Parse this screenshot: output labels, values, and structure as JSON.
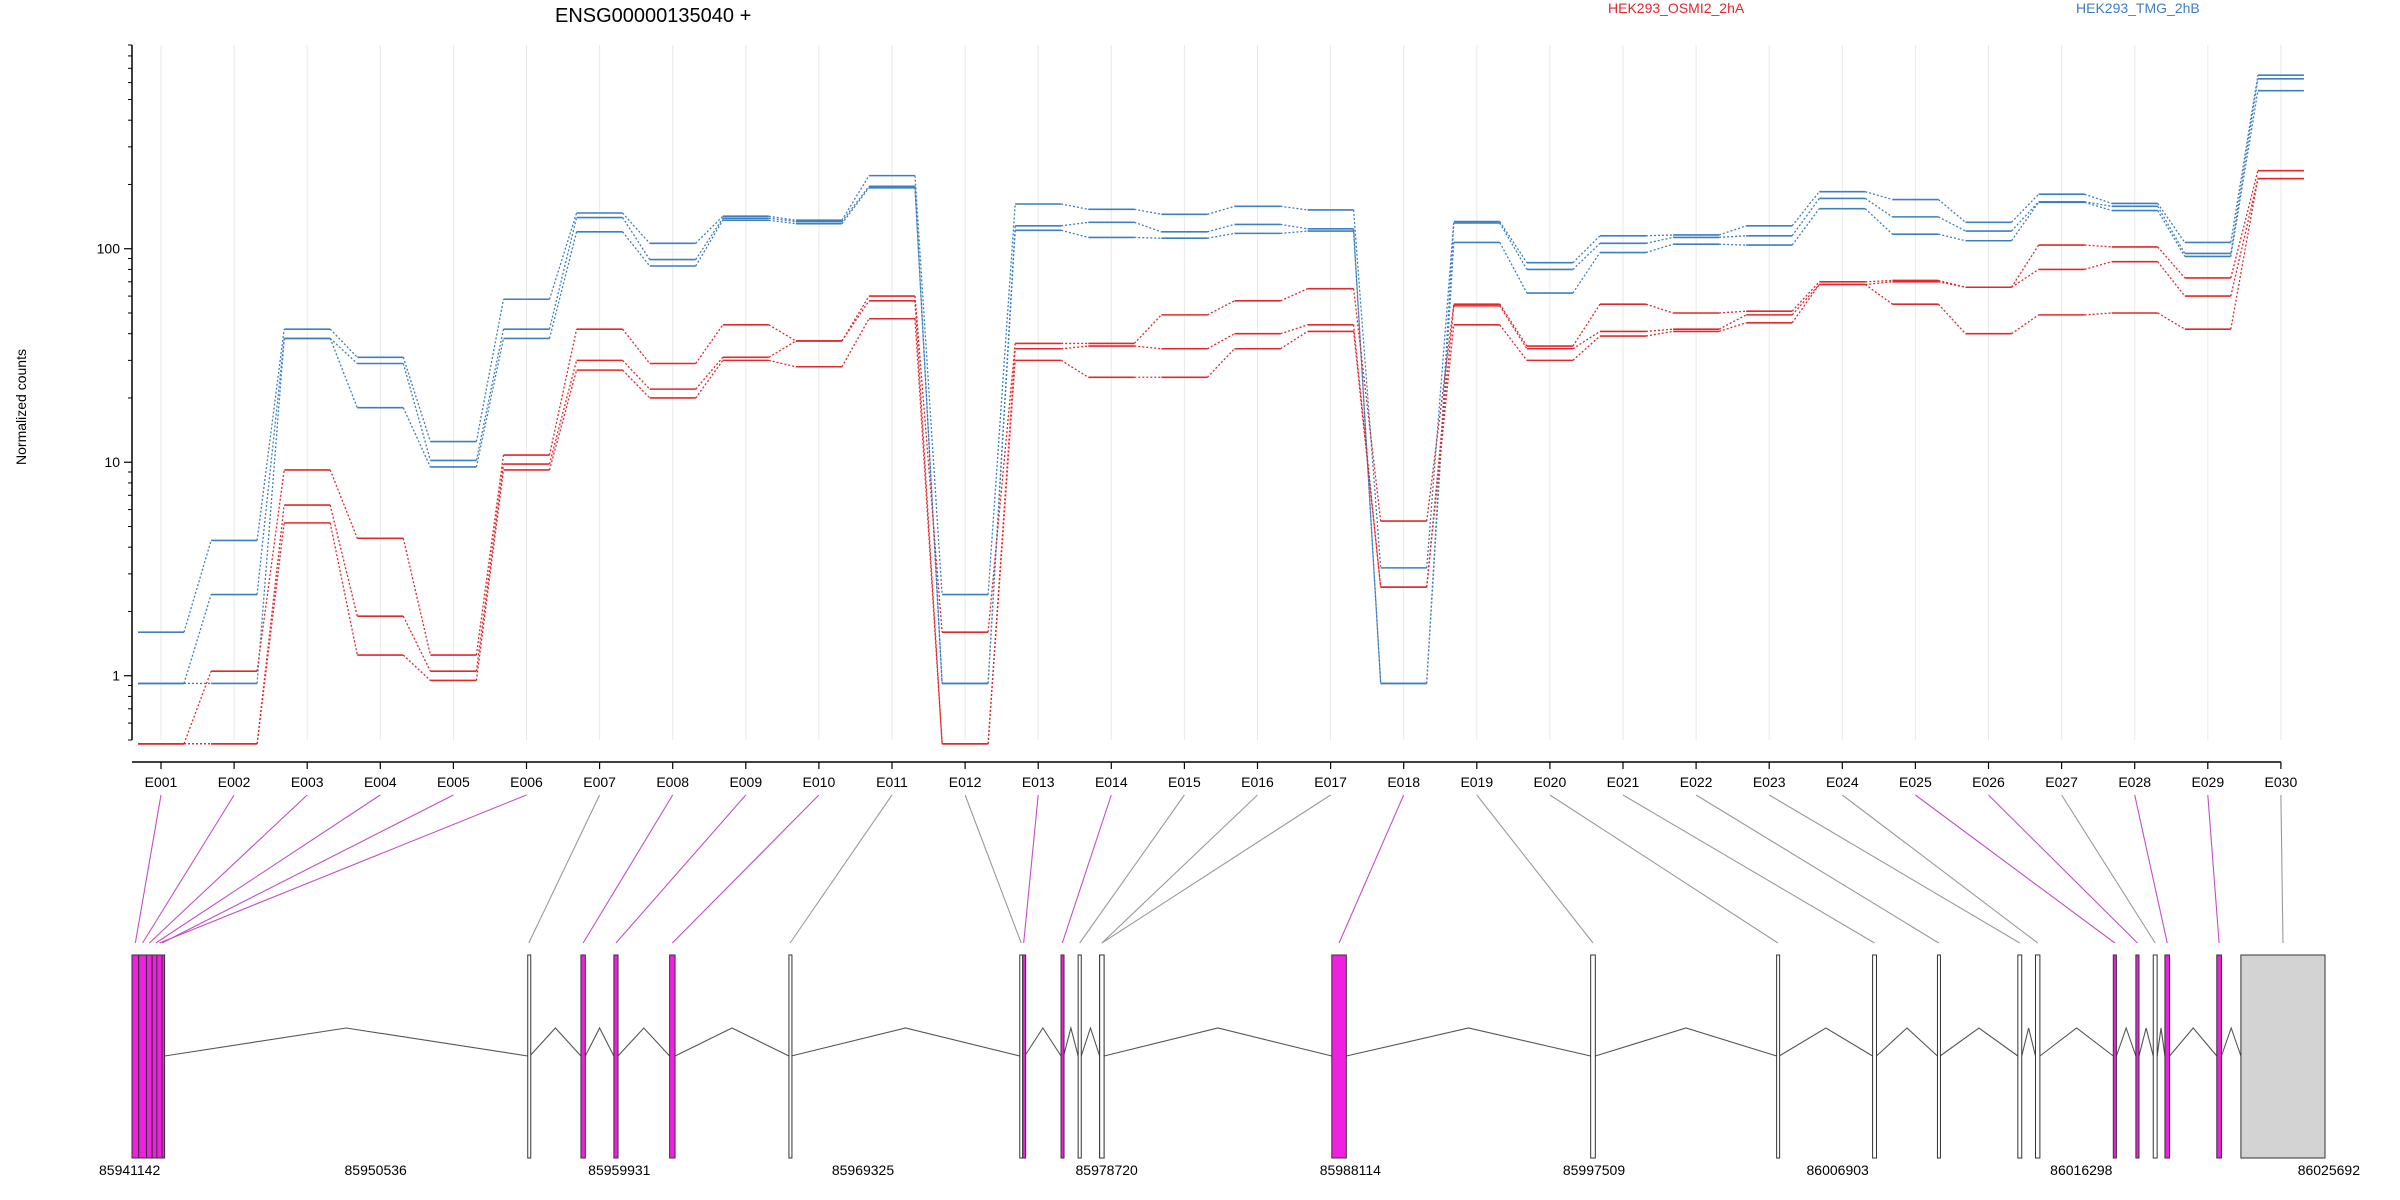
{
  "title": "ENSG00000135040 +",
  "chart_data": {
    "type": "line",
    "title": "ENSG00000135040 +",
    "ylabel": "Normalized counts",
    "yscale": "log",
    "yticks": [
      1,
      10,
      100
    ],
    "ytick_labels": [
      "1",
      "10",
      "100"
    ],
    "ylim": [
      0.5,
      900
    ],
    "categories": [
      "E001",
      "E002",
      "E003",
      "E004",
      "E005",
      "E006",
      "E007",
      "E008",
      "E009",
      "E010",
      "E011",
      "E012",
      "E013",
      "E014",
      "E015",
      "E016",
      "E017",
      "E018",
      "E019",
      "E020",
      "E021",
      "E022",
      "E023",
      "E024",
      "E025",
      "E026",
      "E027",
      "E028",
      "E029",
      "E030"
    ],
    "legend": [
      {
        "label": "HEK293_OSMI2_2hA",
        "color": "#e0282d"
      },
      {
        "label": "HEK293_TMG_2hB",
        "color": "#3d7fbf"
      }
    ],
    "series": [
      {
        "group": "HEK293_TMG_2hB",
        "color": "#3d7fbf",
        "values": [
          1.6,
          4.3,
          42,
          31,
          12.5,
          58,
          147,
          106,
          142,
          136,
          220,
          2.4,
          162,
          153,
          145,
          158,
          152,
          3.2,
          134,
          86,
          115,
          116,
          128,
          185,
          170,
          133,
          180,
          163,
          107,
          650
        ]
      },
      {
        "group": "HEK293_TMG_2hB",
        "color": "#3d7fbf",
        "values": [
          0.92,
          2.4,
          38,
          29,
          10.2,
          42,
          140,
          89,
          139,
          134,
          196,
          0.92,
          128,
          133,
          120,
          130,
          124,
          0.92,
          132,
          80,
          106,
          113,
          115,
          172,
          141,
          121,
          166,
          158,
          95,
          625
        ]
      },
      {
        "group": "HEK293_TMG_2hB",
        "color": "#3d7fbf",
        "values": [
          0.92,
          0.92,
          38,
          18,
          9.5,
          38,
          120,
          83,
          136,
          131,
          193,
          0.92,
          122,
          113,
          112,
          118,
          121,
          0.92,
          107,
          62,
          96,
          105,
          104,
          154,
          117,
          109,
          165,
          151,
          92,
          550
        ]
      },
      {
        "group": "HEK293_OSMI2_2hA",
        "color": "#e0282d",
        "values": [
          0.48,
          1.05,
          9.2,
          4.4,
          1.25,
          10.8,
          42,
          29,
          44,
          37,
          60,
          1.6,
          36,
          36,
          49,
          57,
          65,
          5.3,
          55,
          35,
          55,
          50,
          51,
          70,
          71,
          66,
          104,
          102,
          73,
          232
        ]
      },
      {
        "group": "HEK293_OSMI2_2hA",
        "color": "#e0282d",
        "values": [
          0.48,
          0.48,
          6.3,
          1.9,
          1.05,
          9.8,
          30,
          22,
          31,
          37,
          57,
          0.48,
          34,
          35,
          34,
          40,
          44,
          2.6,
          54,
          34,
          41,
          42,
          49,
          68,
          70,
          66,
          80,
          87,
          60,
          213
        ]
      },
      {
        "group": "HEK293_OSMI2_2hA",
        "color": "#e0282d",
        "values": [
          0.48,
          0.48,
          5.2,
          1.25,
          0.95,
          9.2,
          27,
          20,
          30,
          28,
          47,
          0.48,
          30,
          25,
          25,
          34,
          41,
          2.6,
          44,
          30,
          39,
          41,
          45,
          68,
          55,
          40,
          49,
          50,
          42,
          213
        ]
      }
    ],
    "genomic_axis": {
      "start": 85941142,
      "end": 86025692,
      "tick_labels": [
        "85941142",
        "85950536",
        "85959931",
        "85969325",
        "85978720",
        "85988114",
        "85997509",
        "86006903",
        "86016298",
        "86025692"
      ]
    },
    "exons": [
      {
        "id": "E001",
        "start": 85941142,
        "end": 85941400,
        "highlight": true
      },
      {
        "id": "E002",
        "start": 85941400,
        "end": 85941700,
        "highlight": true
      },
      {
        "id": "E003",
        "start": 85941700,
        "end": 85941920,
        "highlight": true
      },
      {
        "id": "E004",
        "start": 85941920,
        "end": 85942200,
        "highlight": true
      },
      {
        "id": "E005",
        "start": 85942200,
        "end": 85942400,
        "highlight": true
      },
      {
        "id": "E006",
        "start": 85942100,
        "end": 85942300,
        "highlight": true
      },
      {
        "id": "E007",
        "start": 85956400,
        "end": 85956480,
        "highlight": false
      },
      {
        "id": "E008",
        "start": 85958450,
        "end": 85958620,
        "highlight": true
      },
      {
        "id": "E009",
        "start": 85959720,
        "end": 85959880,
        "highlight": true
      },
      {
        "id": "E010",
        "start": 85961870,
        "end": 85962080,
        "highlight": true
      },
      {
        "id": "E011",
        "start": 85966470,
        "end": 85966560,
        "highlight": false
      },
      {
        "id": "E012",
        "start": 85975370,
        "end": 85975480,
        "highlight": false
      },
      {
        "id": "E013",
        "start": 85975480,
        "end": 85975560,
        "highlight": true
      },
      {
        "id": "E014",
        "start": 85976960,
        "end": 85977060,
        "highlight": true
      },
      {
        "id": "E015",
        "start": 85977620,
        "end": 85977740,
        "highlight": false
      },
      {
        "id": "E016",
        "start": 85978450,
        "end": 85978620,
        "highlight": false
      },
      {
        "id": "E017",
        "start": 85978450,
        "end": 85978620,
        "highlight": false
      },
      {
        "id": "E018",
        "start": 85987400,
        "end": 85987960,
        "highlight": true
      },
      {
        "id": "E019",
        "start": 85997380,
        "end": 85997560,
        "highlight": false
      },
      {
        "id": "E020",
        "start": 86004550,
        "end": 86004650,
        "highlight": false
      },
      {
        "id": "E021",
        "start": 86008250,
        "end": 86008400,
        "highlight": false
      },
      {
        "id": "E022",
        "start": 86010750,
        "end": 86010850,
        "highlight": false
      },
      {
        "id": "E023",
        "start": 86013850,
        "end": 86014000,
        "highlight": false
      },
      {
        "id": "E024",
        "start": 86014530,
        "end": 86014700,
        "highlight": false
      },
      {
        "id": "E025",
        "start": 86017530,
        "end": 86017650,
        "highlight": true
      },
      {
        "id": "E026",
        "start": 86018400,
        "end": 86018520,
        "highlight": true
      },
      {
        "id": "E027",
        "start": 86019070,
        "end": 86019220,
        "highlight": false
      },
      {
        "id": "E028",
        "start": 86019520,
        "end": 86019700,
        "highlight": true
      },
      {
        "id": "E029",
        "start": 86021520,
        "end": 86021700,
        "highlight": true
      },
      {
        "id": "E030",
        "start": 86022450,
        "end": 86025692,
        "highlight": false
      }
    ]
  }
}
